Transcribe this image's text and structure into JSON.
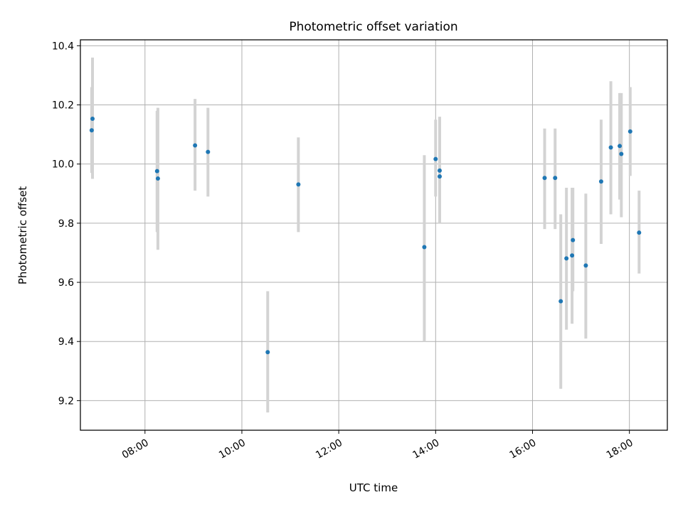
{
  "chart_data": {
    "type": "scatter",
    "title": "Photometric offset variation",
    "xlabel": "UTC time",
    "ylabel": "Photometric offset",
    "grid": true,
    "legend": "none",
    "xlim": [
      "06:40",
      "18:47"
    ],
    "ylim": [
      9.1,
      10.42
    ],
    "xticks": [
      "08:00",
      "10:00",
      "12:00",
      "14:00",
      "16:00",
      "18:00"
    ],
    "yticks": [
      "9.2",
      "9.4",
      "9.6",
      "9.8",
      "10.0",
      "10.2",
      "10.4"
    ],
    "point_color": "#1f77b4",
    "errorbar_color": "#d3d3d3",
    "points": [
      {
        "x": "06:54",
        "y": 10.114,
        "err_low": 9.97,
        "err_high": 10.26
      },
      {
        "x": "06:55",
        "y": 10.153,
        "err_low": 9.95,
        "err_high": 10.36
      },
      {
        "x": "08:15",
        "y": 9.976,
        "err_low": 9.77,
        "err_high": 10.18
      },
      {
        "x": "08:16",
        "y": 9.951,
        "err_low": 9.71,
        "err_high": 10.19
      },
      {
        "x": "09:02",
        "y": 10.063,
        "err_low": 9.91,
        "err_high": 10.22
      },
      {
        "x": "09:18",
        "y": 10.041,
        "err_low": 9.89,
        "err_high": 10.19
      },
      {
        "x": "10:32",
        "y": 9.364,
        "err_low": 9.16,
        "err_high": 9.57
      },
      {
        "x": "11:10",
        "y": 9.931,
        "err_low": 9.77,
        "err_high": 10.09
      },
      {
        "x": "13:46",
        "y": 9.719,
        "err_low": 9.4,
        "err_high": 10.03
      },
      {
        "x": "14:00",
        "y": 10.017,
        "err_low": 9.89,
        "err_high": 10.15
      },
      {
        "x": "14:05",
        "y": 9.978,
        "err_low": 9.82,
        "err_high": 10.1
      },
      {
        "x": "14:05",
        "y": 9.958,
        "err_low": 9.8,
        "err_high": 10.16
      },
      {
        "x": "16:15",
        "y": 9.953,
        "err_low": 9.78,
        "err_high": 10.12
      },
      {
        "x": "16:28",
        "y": 9.953,
        "err_low": 9.78,
        "err_high": 10.12
      },
      {
        "x": "16:35",
        "y": 9.536,
        "err_low": 9.24,
        "err_high": 9.83
      },
      {
        "x": "16:42",
        "y": 9.681,
        "err_low": 9.44,
        "err_high": 9.92
      },
      {
        "x": "16:49",
        "y": 9.691,
        "err_low": 9.46,
        "err_high": 9.92
      },
      {
        "x": "16:50",
        "y": 9.743,
        "err_low": 9.57,
        "err_high": 9.92
      },
      {
        "x": "17:06",
        "y": 9.657,
        "err_low": 9.41,
        "err_high": 9.9
      },
      {
        "x": "17:25",
        "y": 9.941,
        "err_low": 9.73,
        "err_high": 10.15
      },
      {
        "x": "17:37",
        "y": 10.056,
        "err_low": 9.83,
        "err_high": 10.28
      },
      {
        "x": "17:48",
        "y": 10.061,
        "err_low": 9.88,
        "err_high": 10.24
      },
      {
        "x": "17:50",
        "y": 10.034,
        "err_low": 9.82,
        "err_high": 10.24
      },
      {
        "x": "18:01",
        "y": 10.11,
        "err_low": 9.96,
        "err_high": 10.26
      },
      {
        "x": "18:12",
        "y": 9.768,
        "err_low": 9.63,
        "err_high": 9.91
      }
    ]
  }
}
